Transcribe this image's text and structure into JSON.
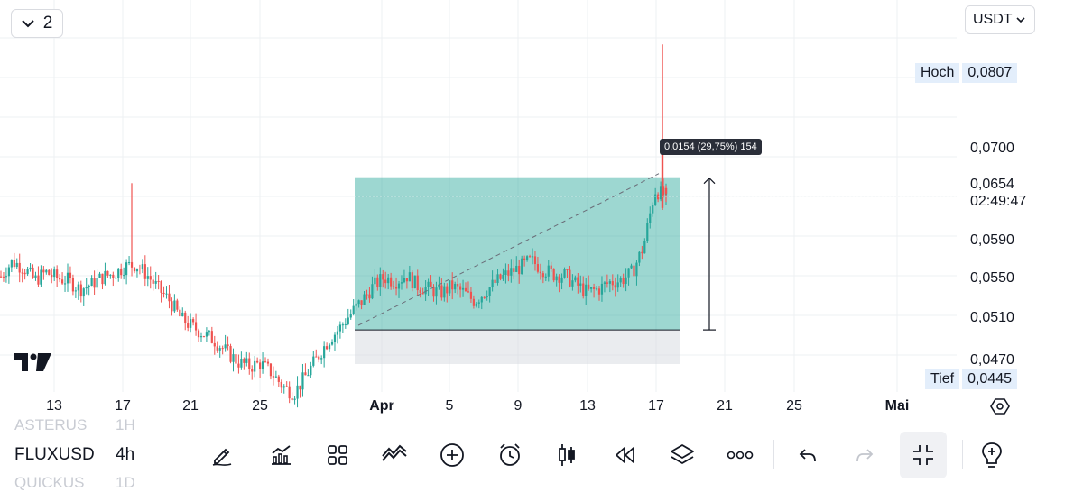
{
  "header": {
    "panel_count": "2",
    "currency": "USDT"
  },
  "price_axis": {
    "high_label": "Hoch",
    "high_value": "0,0807",
    "low_label": "Tief",
    "low_value": "0,0445",
    "current_price": "0,0654",
    "countdown": "02:49:47",
    "ticks": [
      "0,0700",
      "0,0590",
      "0,0550",
      "0,0510",
      "0,0470"
    ]
  },
  "time_axis": {
    "ticks": [
      "13",
      "17",
      "21",
      "25",
      "Apr",
      "5",
      "9",
      "13",
      "17",
      "21",
      "25",
      "Mai"
    ]
  },
  "measure_tool": {
    "readout": "0,0154 (29,75%) 154"
  },
  "symbols": {
    "prev": {
      "name": "ASTERUS",
      "tf": "1H"
    },
    "current": {
      "name": "FLUXUSD",
      "tf": "4h"
    },
    "next": {
      "name": "QUICKUS",
      "tf": "1D"
    }
  },
  "toolbar": {
    "icons": [
      "pencil-icon",
      "indicators-icon",
      "layout-grid-icon",
      "drawing-tools-icon",
      "add-icon",
      "alert-icon",
      "candle-type-icon",
      "replay-icon",
      "layers-icon",
      "more-icon",
      "undo-icon",
      "redo-icon",
      "exit-fullscreen-icon",
      "idea-icon"
    ]
  },
  "colors": {
    "up": "#26a69a",
    "down": "#ef5350",
    "profit_zone": "#26a69a",
    "stop_zone": "#d1d4dc"
  },
  "chart_data": {
    "type": "candlestick",
    "symbol": "FLUXUSD",
    "timeframe": "4h",
    "ylim": [
      0.0445,
      0.0807
    ],
    "x_ticks": [
      "13",
      "17",
      "21",
      "25",
      "Apr",
      "5",
      "9",
      "13",
      "17",
      "21",
      "25",
      "Mai"
    ],
    "price_path": [
      0.0573,
      0.0588,
      0.0582,
      0.0569,
      0.0577,
      0.0571,
      0.0569,
      0.056,
      0.0565,
      0.0572,
      0.0576,
      0.0583,
      0.0585,
      0.0574,
      0.056,
      0.0548,
      0.053,
      0.0522,
      0.0515,
      0.0508,
      0.0497,
      0.0487,
      0.0482,
      0.0485,
      0.0476,
      0.0462,
      0.0455,
      0.0472,
      0.049,
      0.0508,
      0.052,
      0.0535,
      0.0548,
      0.0563,
      0.0572,
      0.0568,
      0.0574,
      0.0563,
      0.056,
      0.0556,
      0.0563,
      0.0557,
      0.0548,
      0.0558,
      0.0568,
      0.0576,
      0.0582,
      0.0589,
      0.0581,
      0.0575,
      0.0574,
      0.0565,
      0.0557,
      0.056,
      0.0567,
      0.0569,
      0.0577,
      0.0603,
      0.066,
      0.0654
    ],
    "last_price": 0.0654,
    "high": 0.0807,
    "low": 0.0445,
    "measurement": {
      "from": 0.0519,
      "to": 0.0673,
      "change": 0.0154,
      "percent": 29.75,
      "bars": 154
    }
  }
}
